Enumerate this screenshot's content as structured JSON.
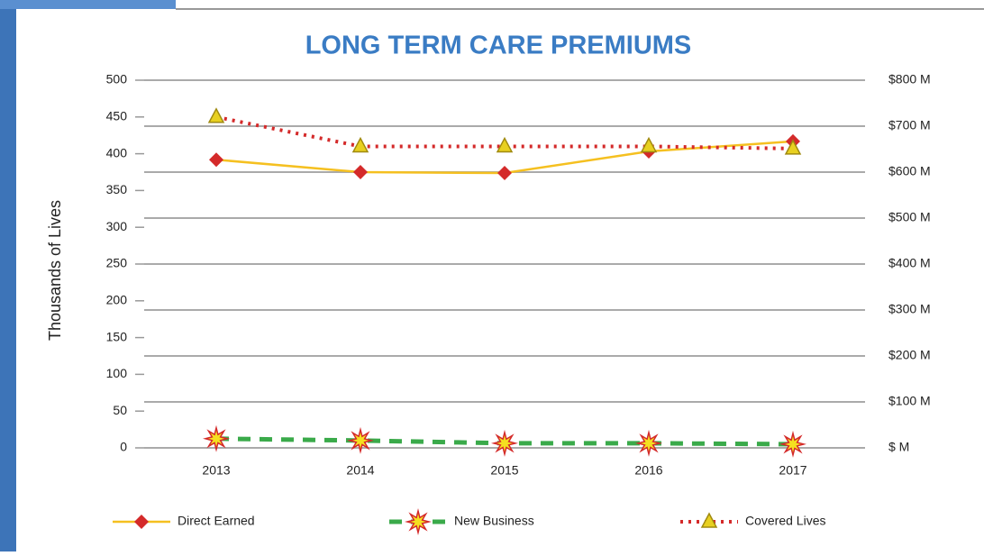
{
  "chart_data": {
    "type": "line",
    "title": "LONG TERM CARE PREMIUMS",
    "y_label": "Thousands of Lives",
    "categories": [
      "2013",
      "2014",
      "2015",
      "2016",
      "2017"
    ],
    "ylim": [
      0,
      500
    ],
    "yticks": [
      0,
      50,
      100,
      150,
      200,
      250,
      300,
      350,
      400,
      450,
      500
    ],
    "y2lim": [
      0,
      800
    ],
    "y2ticks": [
      {
        "value": 0,
        "label": "$ M"
      },
      {
        "value": 100,
        "label": "$100 M"
      },
      {
        "value": 200,
        "label": "$200 M"
      },
      {
        "value": 300,
        "label": "$300 M"
      },
      {
        "value": 400,
        "label": "$400 M"
      },
      {
        "value": 500,
        "label": "$500 M"
      },
      {
        "value": 600,
        "label": "$600 M"
      },
      {
        "value": 700,
        "label": "$700 M"
      },
      {
        "value": 800,
        "label": "$800 M"
      }
    ],
    "grid": true,
    "series": [
      {
        "name": "Direct Earned",
        "color": "#f5c020",
        "marker": "diamond",
        "marker_color": "#d42a2a",
        "line_style": "solid",
        "axis": "y2",
        "values": [
          627,
          600,
          598,
          645,
          667
        ]
      },
      {
        "name": "New Business",
        "color": "#3aaa4a",
        "marker": "star",
        "marker_color": "#f5e020",
        "line_style": "dashed",
        "axis": "y2",
        "values": [
          20,
          16,
          10,
          10,
          8
        ]
      },
      {
        "name": "Covered Lives",
        "color": "#d42a2a",
        "marker": "triangle",
        "marker_color": "#e8d020",
        "line_style": "dotted",
        "values": [
          450,
          410,
          410,
          410,
          407
        ]
      }
    ]
  }
}
